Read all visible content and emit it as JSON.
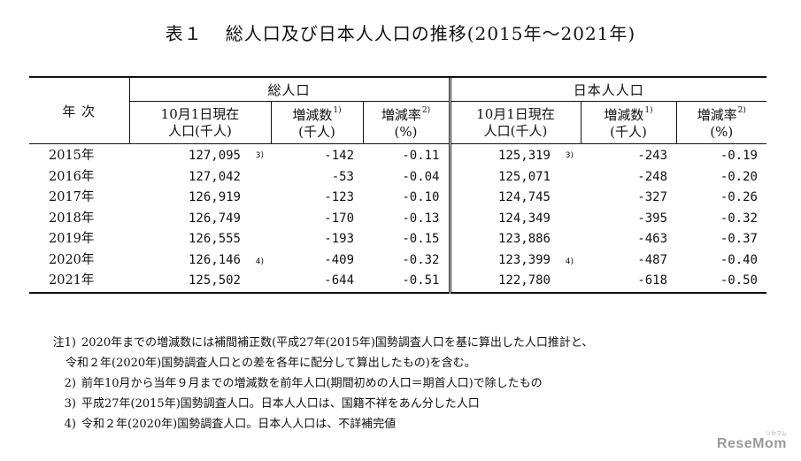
{
  "title": {
    "left": "表１",
    "right": "総人口及び日本人人口の推移(2015年～2021年)"
  },
  "table": {
    "year_header": "年 次",
    "group_total": "総人口",
    "group_japanese": "日本人人口",
    "col_pop_line1": "10月1日現在",
    "col_pop_line2": "人口(千人)",
    "col_change_line1": "増減数",
    "col_change_note": "1)",
    "col_change_line2": "(千人)",
    "col_rate_line1": "増減率",
    "col_rate_note": "2)",
    "col_rate_line2": "(%)",
    "rows": [
      {
        "year": "2015年",
        "total_pop": "127,095",
        "total_note": "3)",
        "total_change": "-142",
        "total_rate": "-0.11",
        "jp_pop": "125,319",
        "jp_note": "3)",
        "jp_change": "-243",
        "jp_rate": "-0.19"
      },
      {
        "year": "2016年",
        "total_pop": "127,042",
        "total_note": "",
        "total_change": "-53",
        "total_rate": "-0.04",
        "jp_pop": "125,071",
        "jp_note": "",
        "jp_change": "-248",
        "jp_rate": "-0.20"
      },
      {
        "year": "2017年",
        "total_pop": "126,919",
        "total_note": "",
        "total_change": "-123",
        "total_rate": "-0.10",
        "jp_pop": "124,745",
        "jp_note": "",
        "jp_change": "-327",
        "jp_rate": "-0.26"
      },
      {
        "year": "2018年",
        "total_pop": "126,749",
        "total_note": "",
        "total_change": "-170",
        "total_rate": "-0.13",
        "jp_pop": "124,349",
        "jp_note": "",
        "jp_change": "-395",
        "jp_rate": "-0.32"
      },
      {
        "year": "2019年",
        "total_pop": "126,555",
        "total_note": "",
        "total_change": "-193",
        "total_rate": "-0.15",
        "jp_pop": "123,886",
        "jp_note": "",
        "jp_change": "-463",
        "jp_rate": "-0.37"
      },
      {
        "year": "2020年",
        "total_pop": "126,146",
        "total_note": "4)",
        "total_change": "-409",
        "total_rate": "-0.32",
        "jp_pop": "123,399",
        "jp_note": "4)",
        "jp_change": "-487",
        "jp_rate": "-0.40"
      },
      {
        "year": "2021年",
        "total_pop": "125,502",
        "total_note": "",
        "total_change": "-644",
        "total_rate": "-0.51",
        "jp_pop": "122,780",
        "jp_note": "",
        "jp_change": "-618",
        "jp_rate": "-0.50"
      }
    ]
  },
  "footnotes": [
    {
      "mark": "注1)",
      "text": "2020年までの増減数には補間補正数(平成27年(2015年)国勢調査人口を基に算出した人口推計と、"
    },
    {
      "mark": "",
      "text": "令和２年(2020年)国勢調査人口との差を各年に配分して算出したもの)を含む。"
    },
    {
      "mark": "2)",
      "text": "前年10月から当年９月までの増減数を前年人口(期間初めの人口＝期首人口)で除したもの"
    },
    {
      "mark": "3)",
      "text": "平成27年(2015年)国勢調査人口。日本人人口は、国籍不祥をあん分した人口"
    },
    {
      "mark": "4)",
      "text": "令和２年(2020年)国勢調査人口。日本人人口は、不詳補完値"
    }
  ],
  "logo": {
    "text": "ReseMom",
    "small": "リセマム"
  }
}
